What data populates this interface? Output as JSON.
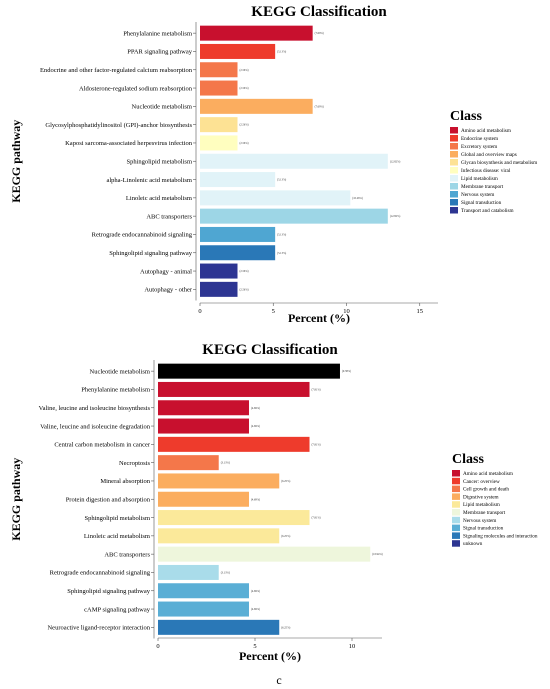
{
  "chart_data": [
    {
      "type": "bar",
      "orientation": "horizontal",
      "title": "KEGG Classification",
      "xlabel": "Percent (%)",
      "ylabel": "KEGG pathway",
      "xlim": [
        0,
        16
      ],
      "xticks": [
        0,
        5,
        10,
        15
      ],
      "legend_title": "Class",
      "legend_position": "right",
      "grid": false,
      "categories": [
        "Phenylalanine metabolism",
        "PPAR signaling pathway",
        "Endocrine and other factor-regulated calcium reabsorption",
        "Aldosterone-regulated sodium reabsorption",
        "Nucleotide metabolism",
        "Glycosylphosphatidylinositol (GPI)-anchor biosynthesis",
        "Kaposi sarcoma-associated herpesvirus infection",
        "Sphingolipid metabolism",
        "alpha-Linolenic acid metabolism",
        "Linoleic acid metabolism",
        "ABC transporters",
        "Retrograde endocannabinoid signaling",
        "Sphingolipid signaling pathway",
        "Autophagy - animal",
        "Autophagy - other"
      ],
      "values": [
        7.69,
        5.13,
        2.56,
        2.56,
        7.69,
        2.56,
        2.56,
        12.82,
        5.13,
        10.26,
        12.82,
        5.13,
        5.13,
        2.56,
        2.56
      ],
      "value_labels": [
        "(7.69%)",
        "(5.13%)",
        "(2.56%)",
        "(2.56%)",
        "(7.69%)",
        "(2.56%)",
        "(2.56%)",
        "(12.82%)",
        "(5.13%)",
        "(10.26%)",
        "(12.82%)",
        "(5.13%)",
        "(5.13%)",
        "(2.56%)",
        "(2.56%)"
      ],
      "bar_classes": [
        0,
        1,
        2,
        2,
        3,
        4,
        5,
        6,
        6,
        6,
        7,
        8,
        9,
        10,
        10
      ],
      "legend": [
        {
          "name": "Amino acid metabolism",
          "color": "#c8102e"
        },
        {
          "name": "Endocrine system",
          "color": "#ee3b2c"
        },
        {
          "name": "Excretory system",
          "color": "#f4774a"
        },
        {
          "name": "Global and overview maps",
          "color": "#fbad5f"
        },
        {
          "name": "Glycan biosynthesis and metabolism",
          "color": "#fde294"
        },
        {
          "name": "Infectious disease: viral",
          "color": "#fffebf"
        },
        {
          "name": "Lipid metabolism",
          "color": "#e1f3f8"
        },
        {
          "name": "Membrane transport",
          "color": "#9dd6e6"
        },
        {
          "name": "Nervous system",
          "color": "#4fa6d2"
        },
        {
          "name": "Signal transduction",
          "color": "#2a78b7"
        },
        {
          "name": "Transport and catabolism",
          "color": "#2d3592"
        }
      ]
    },
    {
      "type": "bar",
      "orientation": "horizontal",
      "title": "KEGG Classification",
      "xlabel": "Percent (%)",
      "ylabel": "KEGG pathway",
      "xlim": [
        0,
        11.5
      ],
      "xticks": [
        0,
        5,
        10
      ],
      "legend_title": "Class",
      "legend_position": "right",
      "grid": false,
      "categories": [
        "Nucleotide metabolism",
        "Phenylalanine metabolism",
        "Valine, leucine and isoleucine biosynthesis",
        "Valine, leucine and isoleucine degradation",
        "Central carbon metabolism in cancer",
        "Necroptosis",
        "Mineral absorption",
        "Protein digestion and absorption",
        "Sphingolipid metabolism",
        "Linoleic acid metabolism",
        "ABC transporters",
        "Retrograde endocannabinoid signaling",
        "Sphingolipid signaling pathway",
        "cAMP signaling pathway",
        "Neuroactive ligand-receptor interaction"
      ],
      "values": [
        9.38,
        7.81,
        4.69,
        4.69,
        7.81,
        3.13,
        6.25,
        4.69,
        7.81,
        6.25,
        10.94,
        3.13,
        4.69,
        4.69,
        6.25
      ],
      "value_labels": [
        "(9.38%)",
        "(7.81%)",
        "(4.69%)",
        "(4.69%)",
        "(7.81%)",
        "(3.13%)",
        "(6.25%)",
        "(4.69%)",
        "(7.81%)",
        "(6.25%)",
        "(10.94%)",
        "(3.13%)",
        "(4.69%)",
        "(4.69%)",
        "(6.25%)"
      ],
      "bar_classes": [
        10,
        0,
        0,
        0,
        1,
        2,
        3,
        3,
        4,
        4,
        5,
        6,
        7,
        7,
        8
      ],
      "legend": [
        {
          "name": "Amino acid metabolism",
          "color": "#c8102e"
        },
        {
          "name": "Cancer: overview",
          "color": "#ee3b2c"
        },
        {
          "name": "Cell growth and death",
          "color": "#f4774a"
        },
        {
          "name": "Digestive system",
          "color": "#fbad5f"
        },
        {
          "name": "Lipid metabolism",
          "color": "#fbe99a"
        },
        {
          "name": "Membrane transport",
          "color": "#eef6dc"
        },
        {
          "name": "Nervous system",
          "color": "#a9dcea"
        },
        {
          "name": "Signal transduction",
          "color": "#5aaed5"
        },
        {
          "name": "Signaling molecules and interaction",
          "color": "#2a78b7"
        },
        {
          "name": "unknown",
          "color": "#2d3592"
        }
      ]
    }
  ],
  "caption": "c"
}
